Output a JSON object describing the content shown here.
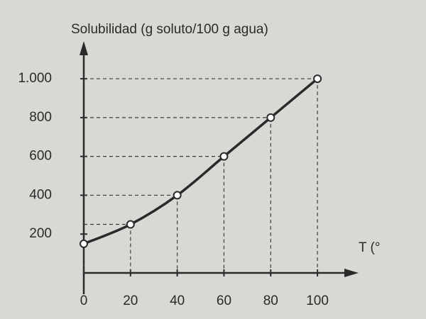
{
  "chart_data": {
    "type": "line",
    "y_label": "Solubilidad (g soluto/100 g agua)",
    "x_label": "T (°",
    "x": [
      0,
      20,
      40,
      60,
      80,
      100
    ],
    "values": [
      150,
      250,
      400,
      600,
      800,
      1000
    ],
    "color": "#2a2a2a",
    "xlim": [
      0,
      110
    ],
    "ylim": [
      0,
      1150
    ],
    "xticks": [
      0,
      20,
      40,
      60,
      80,
      100
    ],
    "yticks": [
      200,
      400,
      600,
      800,
      {
        "value": 1000,
        "label": "1.000"
      }
    ],
    "guides": true
  }
}
